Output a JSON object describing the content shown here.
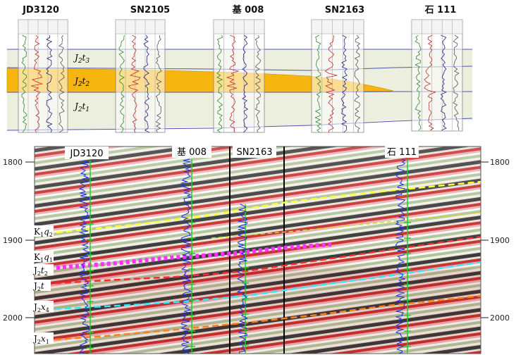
{
  "top_panel": {
    "wells": [
      "JD3120",
      "SN2105",
      "基 008",
      "SN2163",
      "石 111"
    ],
    "zones": [
      "J2t3",
      "J2t2",
      "J2t1"
    ],
    "fill_color": "#f6b50f",
    "band_color": "#eceede",
    "line_color": "#4b56b0"
  },
  "seismic": {
    "well_labels": [
      "JD3120",
      "基 008",
      "SN2163",
      "石 111"
    ],
    "depth_ticks": [
      "1800",
      "1900",
      "2000"
    ],
    "horizon_labels": [
      "K1q2",
      "K1q1",
      "J2t2",
      "J2t",
      "J2x4",
      "J2x1"
    ],
    "horizon_colors": {
      "K1q2": "#ffff33",
      "K1q1": "#ff33ff",
      "J2t": "#ff2a2a",
      "J2x4": "#33e5ff",
      "J2x1": "#ff7f1a"
    }
  }
}
